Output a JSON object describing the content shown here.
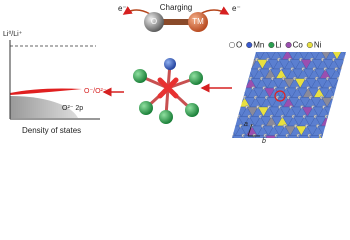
{
  "top": {
    "label": "Charging",
    "electron_left": "e⁻",
    "electron_right": "e⁻",
    "atom_o": "O",
    "atom_tm": "TM"
  },
  "dos": {
    "reference": "Li⁰/Li⁺",
    "peak_label": "O⁻/O²⁻",
    "band_label": "O²⁻ 2p",
    "x_axis": "Density of states"
  },
  "lattice": {
    "legend": [
      "O",
      "Mn",
      "Li",
      "Co",
      "Ni"
    ],
    "axis_a": "a",
    "axis_b": "b"
  }
}
